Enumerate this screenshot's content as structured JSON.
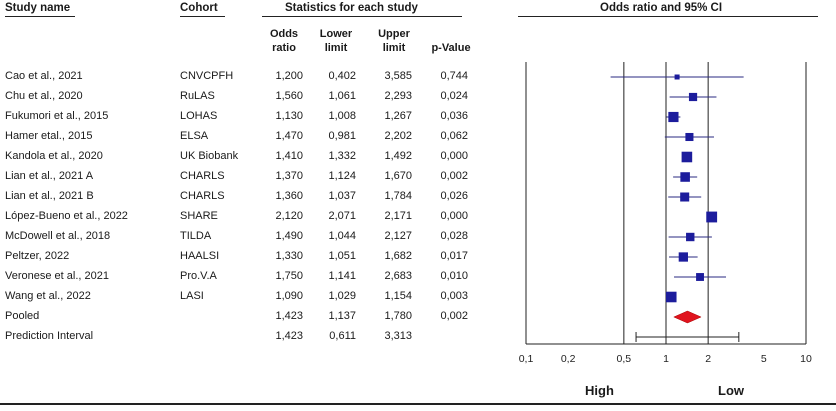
{
  "headers": {
    "study_name": "Study name",
    "cohort": "Cohort",
    "stats": "Statistics for each study",
    "forest": "Odds ratio and 95% CI",
    "col_or": [
      "Odds",
      "ratio"
    ],
    "col_lower": [
      "Lower",
      "limit"
    ],
    "col_upper": [
      "Upper",
      "limit"
    ],
    "col_p": [
      "",
      "p-Value"
    ]
  },
  "rows": [
    {
      "study": "Cao et al., 2021",
      "cohort": "CNVCPFH",
      "or": "1,200",
      "lower": "0,402",
      "upper": "3,585",
      "p": "0,744"
    },
    {
      "study": "Chu et al., 2020",
      "cohort": "RuLAS",
      "or": "1,560",
      "lower": "1,061",
      "upper": "2,293",
      "p": "0,024"
    },
    {
      "study": "Fukumori et al., 2015",
      "cohort": "LOHAS",
      "or": "1,130",
      "lower": "1,008",
      "upper": "1,267",
      "p": "0,036"
    },
    {
      "study": "Hamer etal., 2015",
      "cohort": "ELSA",
      "or": "1,470",
      "lower": "0,981",
      "upper": "2,202",
      "p": "0,062"
    },
    {
      "study": "Kandola et al., 2020",
      "cohort": "UK Biobank",
      "or": "1,410",
      "lower": "1,332",
      "upper": "1,492",
      "p": "0,000"
    },
    {
      "study": "Lian et al., 2021 A",
      "cohort": "CHARLS",
      "or": "1,370",
      "lower": "1,124",
      "upper": "1,670",
      "p": "0,002"
    },
    {
      "study": "Lian et al., 2021 B",
      "cohort": "CHARLS",
      "or": "1,360",
      "lower": "1,037",
      "upper": "1,784",
      "p": "0,026"
    },
    {
      "study": "López-Bueno et al., 2022",
      "cohort": "SHARE",
      "or": "2,120",
      "lower": "2,071",
      "upper": "2,171",
      "p": "0,000"
    },
    {
      "study": "McDowell et al., 2018",
      "cohort": "TILDA",
      "or": "1,490",
      "lower": "1,044",
      "upper": "2,127",
      "p": "0,028"
    },
    {
      "study": "Peltzer, 2022",
      "cohort": "HAALSI",
      "or": "1,330",
      "lower": "1,051",
      "upper": "1,682",
      "p": "0,017"
    },
    {
      "study": "Veronese et al., 2021",
      "cohort": "Pro.V.A",
      "or": "1,750",
      "lower": "1,141",
      "upper": "2,683",
      "p": "0,010"
    },
    {
      "study": "Wang et al., 2022",
      "cohort": "LASI",
      "or": "1,090",
      "lower": "1,029",
      "upper": "1,154",
      "p": "0,003"
    },
    {
      "study": "Pooled",
      "cohort": "",
      "or": "1,423",
      "lower": "1,137",
      "upper": "1,780",
      "p": "0,002"
    },
    {
      "study": "Prediction Interval",
      "cohort": "",
      "or": "1,423",
      "lower": "0,611",
      "upper": "3,313",
      "p": ""
    }
  ],
  "chart_data": {
    "type": "forest",
    "scale": "log",
    "x_ticks": [
      0.1,
      0.2,
      0.5,
      1,
      2,
      5,
      10
    ],
    "x_tick_labels": [
      "0,1",
      "0,2",
      "0,5",
      "1",
      "2",
      "5",
      "10"
    ],
    "reference_lines": [
      0.1,
      0.5,
      1,
      2,
      10
    ],
    "xlim": [
      0.1,
      10
    ],
    "studies": [
      {
        "or": 1.2,
        "lower": 0.402,
        "upper": 3.585
      },
      {
        "or": 1.56,
        "lower": 1.061,
        "upper": 2.293
      },
      {
        "or": 1.13,
        "lower": 1.008,
        "upper": 1.267
      },
      {
        "or": 1.47,
        "lower": 0.981,
        "upper": 2.202
      },
      {
        "or": 1.41,
        "lower": 1.332,
        "upper": 1.492
      },
      {
        "or": 1.37,
        "lower": 1.124,
        "upper": 1.67
      },
      {
        "or": 1.36,
        "lower": 1.037,
        "upper": 1.784
      },
      {
        "or": 2.12,
        "lower": 2.071,
        "upper": 2.171
      },
      {
        "or": 1.49,
        "lower": 1.044,
        "upper": 2.127
      },
      {
        "or": 1.33,
        "lower": 1.051,
        "upper": 1.682
      },
      {
        "or": 1.75,
        "lower": 1.141,
        "upper": 2.683
      },
      {
        "or": 1.09,
        "lower": 1.029,
        "upper": 1.154
      }
    ],
    "pooled": {
      "or": 1.423,
      "lower": 1.137,
      "upper": 1.78
    },
    "prediction_interval": {
      "or": 1.423,
      "lower": 0.611,
      "upper": 3.313
    },
    "bottom_labels": {
      "left": "High",
      "right": "Low"
    },
    "colors": {
      "marker": "#1c1c9c",
      "pooled": "#e0141e",
      "line": "#2a2a80",
      "axis": "#222222"
    }
  }
}
